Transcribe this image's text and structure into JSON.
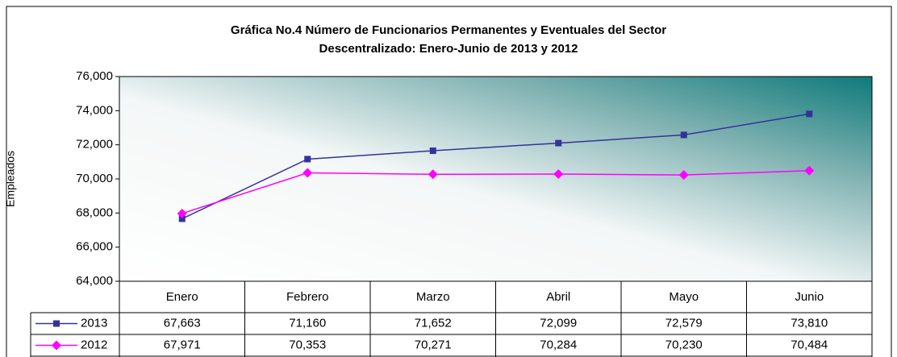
{
  "chart_data": {
    "type": "line",
    "title": [
      "Gráfica No.4 Número de Funcionarios Permanentes y Eventuales del Sector",
      "Descentralizado: Enero-Junio de 2013 y 2012"
    ],
    "y_label": "Empleados",
    "categories": [
      "Enero",
      "Febrero",
      "Marzo",
      "Abril",
      "Mayo",
      "Junio"
    ],
    "series": [
      {
        "name": "2013",
        "color": "#333399",
        "marker": "square",
        "values": [
          67663,
          71160,
          71652,
          72099,
          72579,
          73810
        ],
        "value_labels": [
          "67,663",
          "71,160",
          "71,652",
          "72,099",
          "72,579",
          "73,810"
        ]
      },
      {
        "name": "2012",
        "color": "#ff00ff",
        "marker": "diamond",
        "values": [
          67971,
          70353,
          70271,
          70284,
          70230,
          70484
        ],
        "value_labels": [
          "67,971",
          "70,353",
          "70,271",
          "70,284",
          "70,230",
          "70,484"
        ]
      }
    ],
    "ylim": [
      64000,
      76000
    ],
    "yticks": [
      {
        "value": 64000,
        "label": "64,000"
      },
      {
        "value": 66000,
        "label": "66,000"
      },
      {
        "value": 68000,
        "label": "68,000"
      },
      {
        "value": 70000,
        "label": "70,000"
      },
      {
        "value": 72000,
        "label": "72,000"
      },
      {
        "value": 74000,
        "label": "74,000"
      },
      {
        "value": 76000,
        "label": "76,000"
      }
    ]
  }
}
